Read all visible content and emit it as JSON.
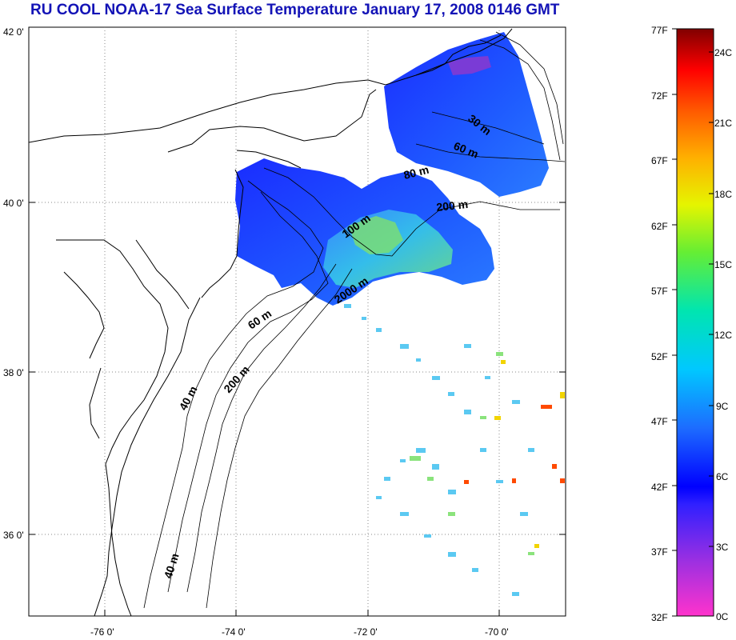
{
  "title": "RU COOL  NOAA-17 Sea Surface Temperature January 17, 2008 0146 GMT",
  "map": {
    "lat_labels": [
      "42 0'",
      "40 0'",
      "38 0'",
      "36 0'"
    ],
    "lon_labels": [
      "-76 0'",
      "-74 0'",
      "-72 0'",
      "-70 0'"
    ],
    "isobaths": [
      {
        "label": "30 m",
        "angle": 38
      },
      {
        "label": "60 m",
        "angle": 22
      },
      {
        "label": "80 m",
        "angle": -14
      },
      {
        "label": "200 m",
        "angle": -6
      },
      {
        "label": "100 m",
        "angle": -36
      },
      {
        "label": "2000 m",
        "angle": -34
      },
      {
        "label": "60 m",
        "angle": -34
      },
      {
        "label": "200 m",
        "angle": -48
      },
      {
        "label": "40 m",
        "angle": -62
      },
      {
        "label": "40 m",
        "angle": -72
      }
    ]
  },
  "colorbar": {
    "f_labels": [
      "77F",
      "72F",
      "67F",
      "62F",
      "57F",
      "52F",
      "47F",
      "42F",
      "37F",
      "32F"
    ],
    "c_labels": [
      "24C",
      "21C",
      "18C",
      "15C",
      "12C",
      "9C",
      "6C",
      "3C",
      "0C"
    ],
    "colors": [
      "#ff33cc",
      "#8a2be2",
      "#0000ff",
      "#2e8bff",
      "#00e5e5",
      "#33dd66",
      "#e5f500",
      "#ff8c00",
      "#ff1a00",
      "#8b0000"
    ]
  }
}
